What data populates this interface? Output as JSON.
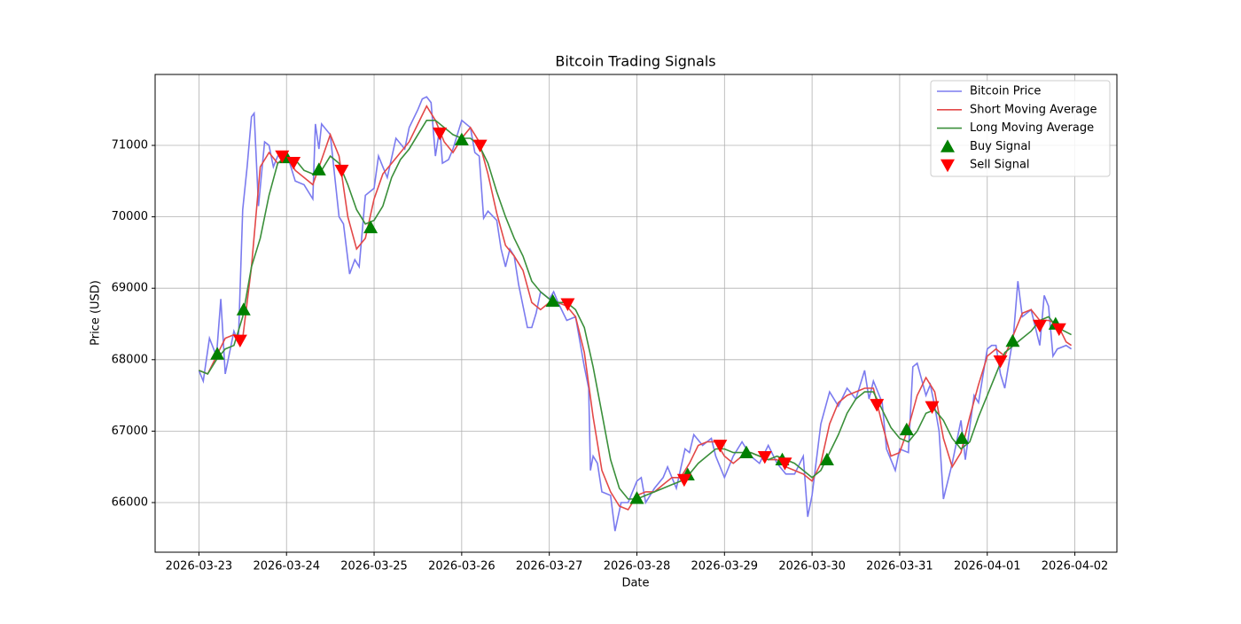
{
  "chart_data": {
    "type": "line",
    "title": "Bitcoin Trading Signals",
    "x_label": "Date",
    "y_label": "Price (USD)",
    "xlim": [
      -0.5,
      10.48
    ],
    "ylim": [
      65305,
      71993
    ],
    "xticks": [
      {
        "value": 0,
        "label": "2026-03-23"
      },
      {
        "value": 1,
        "label": "2026-03-24"
      },
      {
        "value": 2,
        "label": "2026-03-25"
      },
      {
        "value": 3,
        "label": "2026-03-26"
      },
      {
        "value": 4,
        "label": "2026-03-27"
      },
      {
        "value": 5,
        "label": "2026-03-28"
      },
      {
        "value": 6,
        "label": "2026-03-29"
      },
      {
        "value": 7,
        "label": "2026-03-30"
      },
      {
        "value": 8,
        "label": "2026-03-31"
      },
      {
        "value": 9,
        "label": "2026-04-01"
      },
      {
        "value": 10,
        "label": "2026-04-02"
      }
    ],
    "yticks": [
      66000,
      67000,
      68000,
      69000,
      70000,
      71000
    ],
    "grid": true,
    "legend": "upper right",
    "series": [
      {
        "name": "Bitcoin Price",
        "color": "#7b7bef",
        "marker": "none",
        "x": [
          0,
          0.05,
          0.12,
          0.2,
          0.25,
          0.3,
          0.4,
          0.45,
          0.5,
          0.55,
          0.6,
          0.63,
          0.68,
          0.75,
          0.8,
          0.85,
          0.9,
          1.0,
          1.1,
          1.2,
          1.3,
          1.33,
          1.37,
          1.4,
          1.5,
          1.6,
          1.65,
          1.72,
          1.78,
          1.83,
          1.9,
          2.0,
          2.05,
          2.1,
          2.15,
          2.25,
          2.35,
          2.4,
          2.5,
          2.55,
          2.6,
          2.65,
          2.7,
          2.75,
          2.78,
          2.85,
          2.9,
          3.0,
          3.1,
          3.15,
          3.2,
          3.25,
          3.3,
          3.4,
          3.45,
          3.5,
          3.55,
          3.6,
          3.65,
          3.75,
          3.8,
          3.85,
          3.9,
          4.0,
          4.05,
          4.1,
          4.2,
          4.3,
          4.4,
          4.45,
          4.47,
          4.5,
          4.55,
          4.6,
          4.7,
          4.75,
          4.82,
          4.9,
          5.0,
          5.05,
          5.1,
          5.2,
          5.3,
          5.35,
          5.45,
          5.55,
          5.6,
          5.65,
          5.75,
          5.85,
          5.9,
          6.0,
          6.1,
          6.2,
          6.3,
          6.4,
          6.5,
          6.6,
          6.7,
          6.8,
          6.9,
          6.95,
          7.0,
          7.1,
          7.2,
          7.3,
          7.4,
          7.5,
          7.6,
          7.65,
          7.7,
          7.8,
          7.85,
          7.95,
          8.0,
          8.1,
          8.15,
          8.2,
          8.3,
          8.35,
          8.4,
          8.45,
          8.5,
          8.6,
          8.7,
          8.75,
          8.85,
          8.9,
          9.0,
          9.05,
          9.1,
          9.15,
          9.2,
          9.3,
          9.35,
          9.4,
          9.5,
          9.6,
          9.65,
          9.7,
          9.75,
          9.8,
          9.9,
          9.96
        ],
        "values": [
          67850,
          67700,
          68300,
          68050,
          68850,
          67800,
          68400,
          68250,
          70100,
          70700,
          71400,
          71450,
          70150,
          71050,
          71000,
          70700,
          70850,
          70900,
          70500,
          70450,
          70250,
          71300,
          70950,
          71300,
          71150,
          70000,
          69900,
          69200,
          69400,
          69300,
          70300,
          70400,
          70850,
          70700,
          70550,
          71100,
          70950,
          71250,
          71500,
          71650,
          71680,
          71600,
          70850,
          71250,
          70750,
          70800,
          70950,
          71350,
          71250,
          70900,
          70850,
          69980,
          70080,
          69950,
          69550,
          69300,
          69550,
          69450,
          69050,
          68450,
          68450,
          68650,
          68950,
          68850,
          68950,
          68800,
          68550,
          68600,
          67900,
          67600,
          66450,
          66650,
          66550,
          66150,
          66100,
          65600,
          66000,
          66000,
          66300,
          66350,
          66000,
          66200,
          66350,
          66500,
          66200,
          66750,
          66700,
          66950,
          66800,
          66900,
          66650,
          66350,
          66650,
          66850,
          66650,
          66550,
          66800,
          66550,
          66400,
          66400,
          66650,
          65800,
          66100,
          67100,
          67550,
          67350,
          67600,
          67450,
          67850,
          67450,
          67700,
          67400,
          66750,
          66450,
          66750,
          66700,
          67900,
          67950,
          67500,
          67650,
          67350,
          67000,
          66050,
          66550,
          67150,
          66600,
          67500,
          67400,
          68150,
          68200,
          68200,
          67800,
          67600,
          68350,
          69100,
          68600,
          68700,
          68200,
          68900,
          68750,
          68050,
          68150,
          68200,
          68150
        ]
      },
      {
        "name": "Short Moving Average",
        "color": "#e34848",
        "marker": "none",
        "x": [
          0,
          0.1,
          0.2,
          0.3,
          0.4,
          0.5,
          0.6,
          0.7,
          0.8,
          0.9,
          1,
          1.1,
          1.2,
          1.3,
          1.4,
          1.5,
          1.6,
          1.7,
          1.8,
          1.9,
          2,
          2.1,
          2.2,
          2.3,
          2.4,
          2.5,
          2.6,
          2.7,
          2.8,
          2.9,
          3,
          3.1,
          3.2,
          3.3,
          3.4,
          3.5,
          3.6,
          3.7,
          3.8,
          3.9,
          4,
          4.1,
          4.2,
          4.3,
          4.4,
          4.5,
          4.6,
          4.7,
          4.8,
          4.9,
          5,
          5.1,
          5.2,
          5.3,
          5.4,
          5.5,
          5.6,
          5.7,
          5.8,
          5.9,
          6,
          6.1,
          6.2,
          6.3,
          6.4,
          6.5,
          6.6,
          6.7,
          6.8,
          6.9,
          7,
          7.1,
          7.2,
          7.3,
          7.4,
          7.5,
          7.6,
          7.7,
          7.8,
          7.9,
          8,
          8.1,
          8.2,
          8.3,
          8.4,
          8.5,
          8.6,
          8.7,
          8.8,
          8.9,
          9,
          9.1,
          9.2,
          9.3,
          9.4,
          9.5,
          9.6,
          9.7,
          9.8,
          9.9,
          9.96
        ],
        "values": [
          67850,
          67800,
          68050,
          68300,
          68350,
          68300,
          69300,
          70700,
          70900,
          70750,
          70850,
          70650,
          70550,
          70450,
          70800,
          71150,
          70850,
          70000,
          69550,
          69700,
          70250,
          70600,
          70750,
          70900,
          71050,
          71300,
          71550,
          71350,
          71050,
          70900,
          71100,
          71250,
          71050,
          70600,
          70050,
          69600,
          69450,
          69250,
          68800,
          68700,
          68800,
          68800,
          68750,
          68600,
          68100,
          67200,
          66450,
          66150,
          65950,
          65900,
          66100,
          66150,
          66150,
          66250,
          66350,
          66350,
          66550,
          66800,
          66850,
          66850,
          66650,
          66550,
          66650,
          66700,
          66650,
          66600,
          66600,
          66500,
          66450,
          66400,
          66300,
          66550,
          67100,
          67400,
          67500,
          67550,
          67600,
          67600,
          67100,
          66650,
          66700,
          67050,
          67500,
          67750,
          67550,
          66900,
          66500,
          66700,
          67200,
          67650,
          68050,
          68150,
          68050,
          68350,
          68650,
          68700,
          68550,
          68550,
          68500,
          68250,
          68200
        ]
      },
      {
        "name": "Long Moving Average",
        "color": "#3a8f3a",
        "marker": "none",
        "x": [
          0,
          0.1,
          0.2,
          0.3,
          0.4,
          0.5,
          0.6,
          0.7,
          0.8,
          0.9,
          1,
          1.1,
          1.2,
          1.3,
          1.4,
          1.5,
          1.6,
          1.7,
          1.8,
          1.9,
          2,
          2.1,
          2.2,
          2.3,
          2.4,
          2.5,
          2.6,
          2.7,
          2.8,
          2.9,
          3,
          3.1,
          3.2,
          3.3,
          3.4,
          3.5,
          3.6,
          3.7,
          3.8,
          3.9,
          4,
          4.1,
          4.2,
          4.3,
          4.4,
          4.5,
          4.6,
          4.7,
          4.8,
          4.9,
          5,
          5.1,
          5.2,
          5.3,
          5.4,
          5.5,
          5.6,
          5.7,
          5.8,
          5.9,
          6,
          6.1,
          6.2,
          6.3,
          6.4,
          6.5,
          6.6,
          6.7,
          6.8,
          6.9,
          7,
          7.1,
          7.2,
          7.3,
          7.4,
          7.5,
          7.6,
          7.7,
          7.8,
          7.9,
          8,
          8.1,
          8.2,
          8.3,
          8.4,
          8.5,
          8.6,
          8.7,
          8.8,
          8.9,
          9,
          9.1,
          9.2,
          9.3,
          9.4,
          9.5,
          9.6,
          9.7,
          9.8,
          9.96
        ],
        "values": [
          67850,
          67800,
          68000,
          68150,
          68200,
          68600,
          69300,
          69700,
          70300,
          70750,
          70850,
          70800,
          70650,
          70600,
          70650,
          70850,
          70750,
          70450,
          70100,
          69900,
          69950,
          70150,
          70550,
          70800,
          70950,
          71150,
          71350,
          71350,
          71250,
          71150,
          71100,
          71100,
          71000,
          70750,
          70350,
          70000,
          69700,
          69450,
          69100,
          68950,
          68850,
          68800,
          68800,
          68700,
          68450,
          67900,
          67250,
          66600,
          66200,
          66050,
          66050,
          66100,
          66150,
          66200,
          66250,
          66300,
          66400,
          66550,
          66650,
          66750,
          66750,
          66700,
          66700,
          66700,
          66650,
          66600,
          66650,
          66600,
          66550,
          66450,
          66350,
          66450,
          66700,
          66950,
          67250,
          67450,
          67550,
          67550,
          67300,
          67050,
          66900,
          66850,
          67000,
          67250,
          67300,
          67150,
          66900,
          66750,
          66850,
          67200,
          67500,
          67800,
          68100,
          68200,
          68300,
          68400,
          68550,
          68600,
          68450,
          68350
        ]
      },
      {
        "name": "Buy Signal",
        "color": "#008000",
        "marker": "triangle-up",
        "x": [
          0.21,
          0.51,
          1.0,
          1.37,
          1.96,
          3.0,
          4.04,
          5.0,
          5.58,
          6.25,
          6.66,
          7.17,
          8.08,
          8.71,
          9.29,
          9.78
        ],
        "values": [
          68080,
          68700,
          70830,
          70660,
          69850,
          71080,
          68820,
          66060,
          66390,
          66700,
          66600,
          66600,
          67020,
          66900,
          68260,
          68500
        ]
      },
      {
        "name": "Sell Signal",
        "color": "#ff0000",
        "marker": "triangle-down",
        "x": [
          0.47,
          0.95,
          1.08,
          1.63,
          2.75,
          3.21,
          4.21,
          5.54,
          5.95,
          6.46,
          6.69,
          7.74,
          8.37,
          9.15,
          9.6,
          9.82
        ],
        "values": [
          68270,
          70850,
          70760,
          70650,
          71170,
          71000,
          68780,
          66320,
          66800,
          66640,
          66550,
          67370,
          67340,
          67980,
          68480,
          68430
        ]
      }
    ]
  }
}
